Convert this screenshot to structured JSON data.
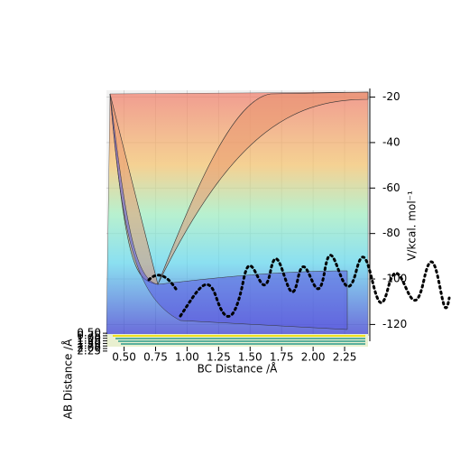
{
  "chart_data": {
    "type": "surface3d",
    "x_label": "BC Distance /Å",
    "y_label": "AB Distance /Å",
    "z_label": "V/kcal. mol⁻¹",
    "xlim": [
      0.36,
      2.45
    ],
    "xticks": [
      {
        "value": 0.5,
        "label": "0.50"
      },
      {
        "value": 0.75,
        "label": "0.75"
      },
      {
        "value": 1.0,
        "label": "1.00"
      },
      {
        "value": 1.25,
        "label": "1.25"
      },
      {
        "value": 1.5,
        "label": "1.50"
      },
      {
        "value": 1.75,
        "label": "1.75"
      },
      {
        "value": 2.0,
        "label": "2.00"
      },
      {
        "value": 2.25,
        "label": "2.25"
      }
    ],
    "ylim": [
      0.4,
      2.35
    ],
    "yticks": [
      {
        "value": 0.5,
        "label": "0.50"
      },
      {
        "value": 0.75,
        "label": "0.75"
      },
      {
        "value": 1.0,
        "label": "1.00"
      },
      {
        "value": 1.25,
        "label": "1.25"
      },
      {
        "value": 1.5,
        "label": "1.50"
      },
      {
        "value": 1.75,
        "label": "1.75"
      },
      {
        "value": 2.0,
        "label": "2.00"
      },
      {
        "value": 2.25,
        "label": "2.25"
      }
    ],
    "zlim": [
      -125,
      -17
    ],
    "zticks": [
      -20,
      -40,
      -60,
      -80,
      -100,
      -120
    ],
    "grid": true
  }
}
